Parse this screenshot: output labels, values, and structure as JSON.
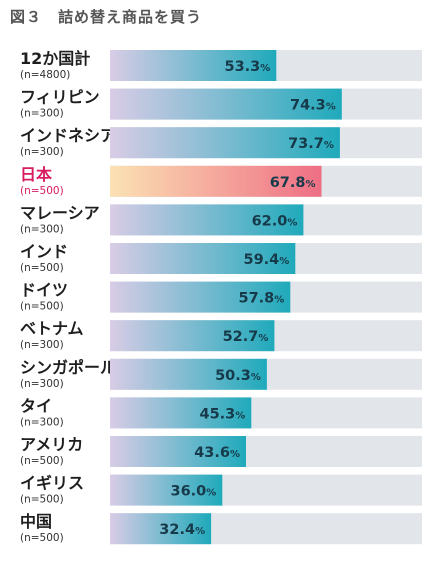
{
  "title": "図３　詰め替え商品を買う",
  "chart_data": {
    "type": "bar",
    "orientation": "horizontal",
    "xlim": [
      0,
      100
    ],
    "unit": "%",
    "highlight_category": "日本",
    "categories": [
      {
        "label": "12か国計",
        "sample": "(n=4800)",
        "value": 53.3
      },
      {
        "label": "フィリピン",
        "sample": "(n=300)",
        "value": 74.3
      },
      {
        "label": "インドネシア",
        "sample": "(n=300)",
        "value": 73.7
      },
      {
        "label": "日本",
        "sample": "(n=500)",
        "value": 67.8
      },
      {
        "label": "マレーシア",
        "sample": "(n=300)",
        "value": 62.0
      },
      {
        "label": "インド",
        "sample": "(n=500)",
        "value": 59.4
      },
      {
        "label": "ドイツ",
        "sample": "(n=500)",
        "value": 57.8
      },
      {
        "label": "ベトナム",
        "sample": "(n=300)",
        "value": 52.7
      },
      {
        "label": "シンガポール",
        "sample": "(n=300)",
        "value": 50.3
      },
      {
        "label": "タイ",
        "sample": "(n=300)",
        "value": 45.3
      },
      {
        "label": "アメリカ",
        "sample": "(n=500)",
        "value": 43.6
      },
      {
        "label": "イギリス",
        "sample": "(n=500)",
        "value": 36.0
      },
      {
        "label": "中国",
        "sample": "(n=500)",
        "value": 32.4
      }
    ],
    "colors": {
      "track": "#e2e5ea",
      "bar_start": "#d9cce6",
      "bar_end": "#1faabb",
      "highlight_start": "#fbe2b4",
      "highlight_end": "#ee6e84",
      "highlight_text": "#d81b60"
    }
  }
}
